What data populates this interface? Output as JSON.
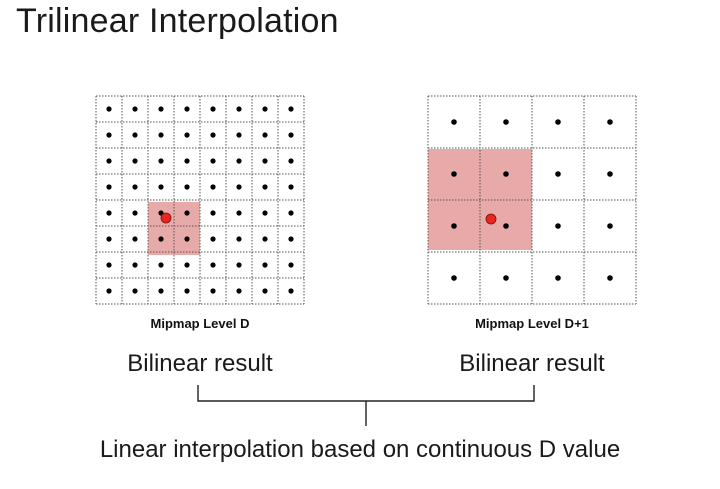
{
  "title": "Trilinear Interpolation",
  "levels": [
    {
      "caption": "Mipmap Level D",
      "result_label": "Bilinear result"
    },
    {
      "caption": "Mipmap Level D+1",
      "result_label": "Bilinear result"
    }
  ],
  "bottom_label": "Linear interpolation based on continuous D value",
  "colors": {
    "highlight": "#e8a9a9",
    "sample_point": "#e8251f",
    "texel_dot": "#000000",
    "grid_line": "#555555"
  }
}
